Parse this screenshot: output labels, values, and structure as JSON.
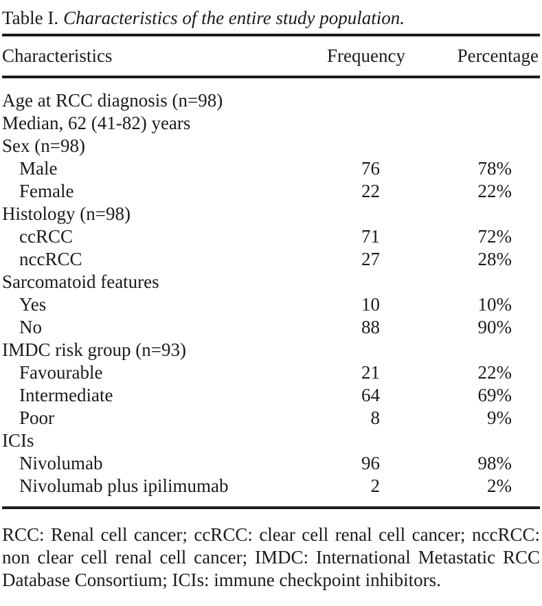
{
  "caption": {
    "label": "Table I.",
    "title": "Characteristics of the entire study population."
  },
  "table": {
    "columns": [
      "Characteristics",
      "Frequency",
      "Percentage"
    ],
    "rows": [
      {
        "label": "Age at RCC diagnosis (n=98)",
        "indent": false,
        "frequency": "",
        "percentage": ""
      },
      {
        "label": "Median, 62 (41-82) years",
        "indent": false,
        "frequency": "",
        "percentage": ""
      },
      {
        "label": "Sex (n=98)",
        "indent": false,
        "frequency": "",
        "percentage": ""
      },
      {
        "label": "Male",
        "indent": true,
        "frequency": "76",
        "percentage": "78%"
      },
      {
        "label": "Female",
        "indent": true,
        "frequency": "22",
        "percentage": "22%"
      },
      {
        "label": "Histology (n=98)",
        "indent": false,
        "frequency": "",
        "percentage": ""
      },
      {
        "label": "ccRCC",
        "indent": true,
        "frequency": "71",
        "percentage": "72%"
      },
      {
        "label": "nccRCC",
        "indent": true,
        "frequency": "27",
        "percentage": "28%"
      },
      {
        "label": "Sarcomatoid features",
        "indent": false,
        "frequency": "",
        "percentage": ""
      },
      {
        "label": "Yes",
        "indent": true,
        "frequency": "10",
        "percentage": "10%"
      },
      {
        "label": "No",
        "indent": true,
        "frequency": "88",
        "percentage": "90%"
      },
      {
        "label": "IMDC risk group (n=93)",
        "indent": false,
        "frequency": "",
        "percentage": ""
      },
      {
        "label": "Favourable",
        "indent": true,
        "frequency": "21",
        "percentage": "22%"
      },
      {
        "label": "Intermediate",
        "indent": true,
        "frequency": "64",
        "percentage": "69%"
      },
      {
        "label": "Poor",
        "indent": true,
        "frequency": "8",
        "percentage": "9%"
      },
      {
        "label": "ICIs",
        "indent": false,
        "frequency": "",
        "percentage": ""
      },
      {
        "label": "Nivolumab",
        "indent": true,
        "frequency": "96",
        "percentage": "98%"
      },
      {
        "label": "Nivolumab plus ipilimumab",
        "indent": true,
        "frequency": "2",
        "percentage": "2%"
      }
    ]
  },
  "footnote": "RCC: Renal cell cancer; ccRCC: clear cell renal cell cancer; nccRCC: non clear cell renal cell cancer; IMDC: International Metastatic RCC Database Consortium; ICIs: immune checkpoint inhibitors.",
  "colors": {
    "text": "#1b1b1b",
    "rule": "#1b1b1b",
    "background": "#ffffff"
  }
}
